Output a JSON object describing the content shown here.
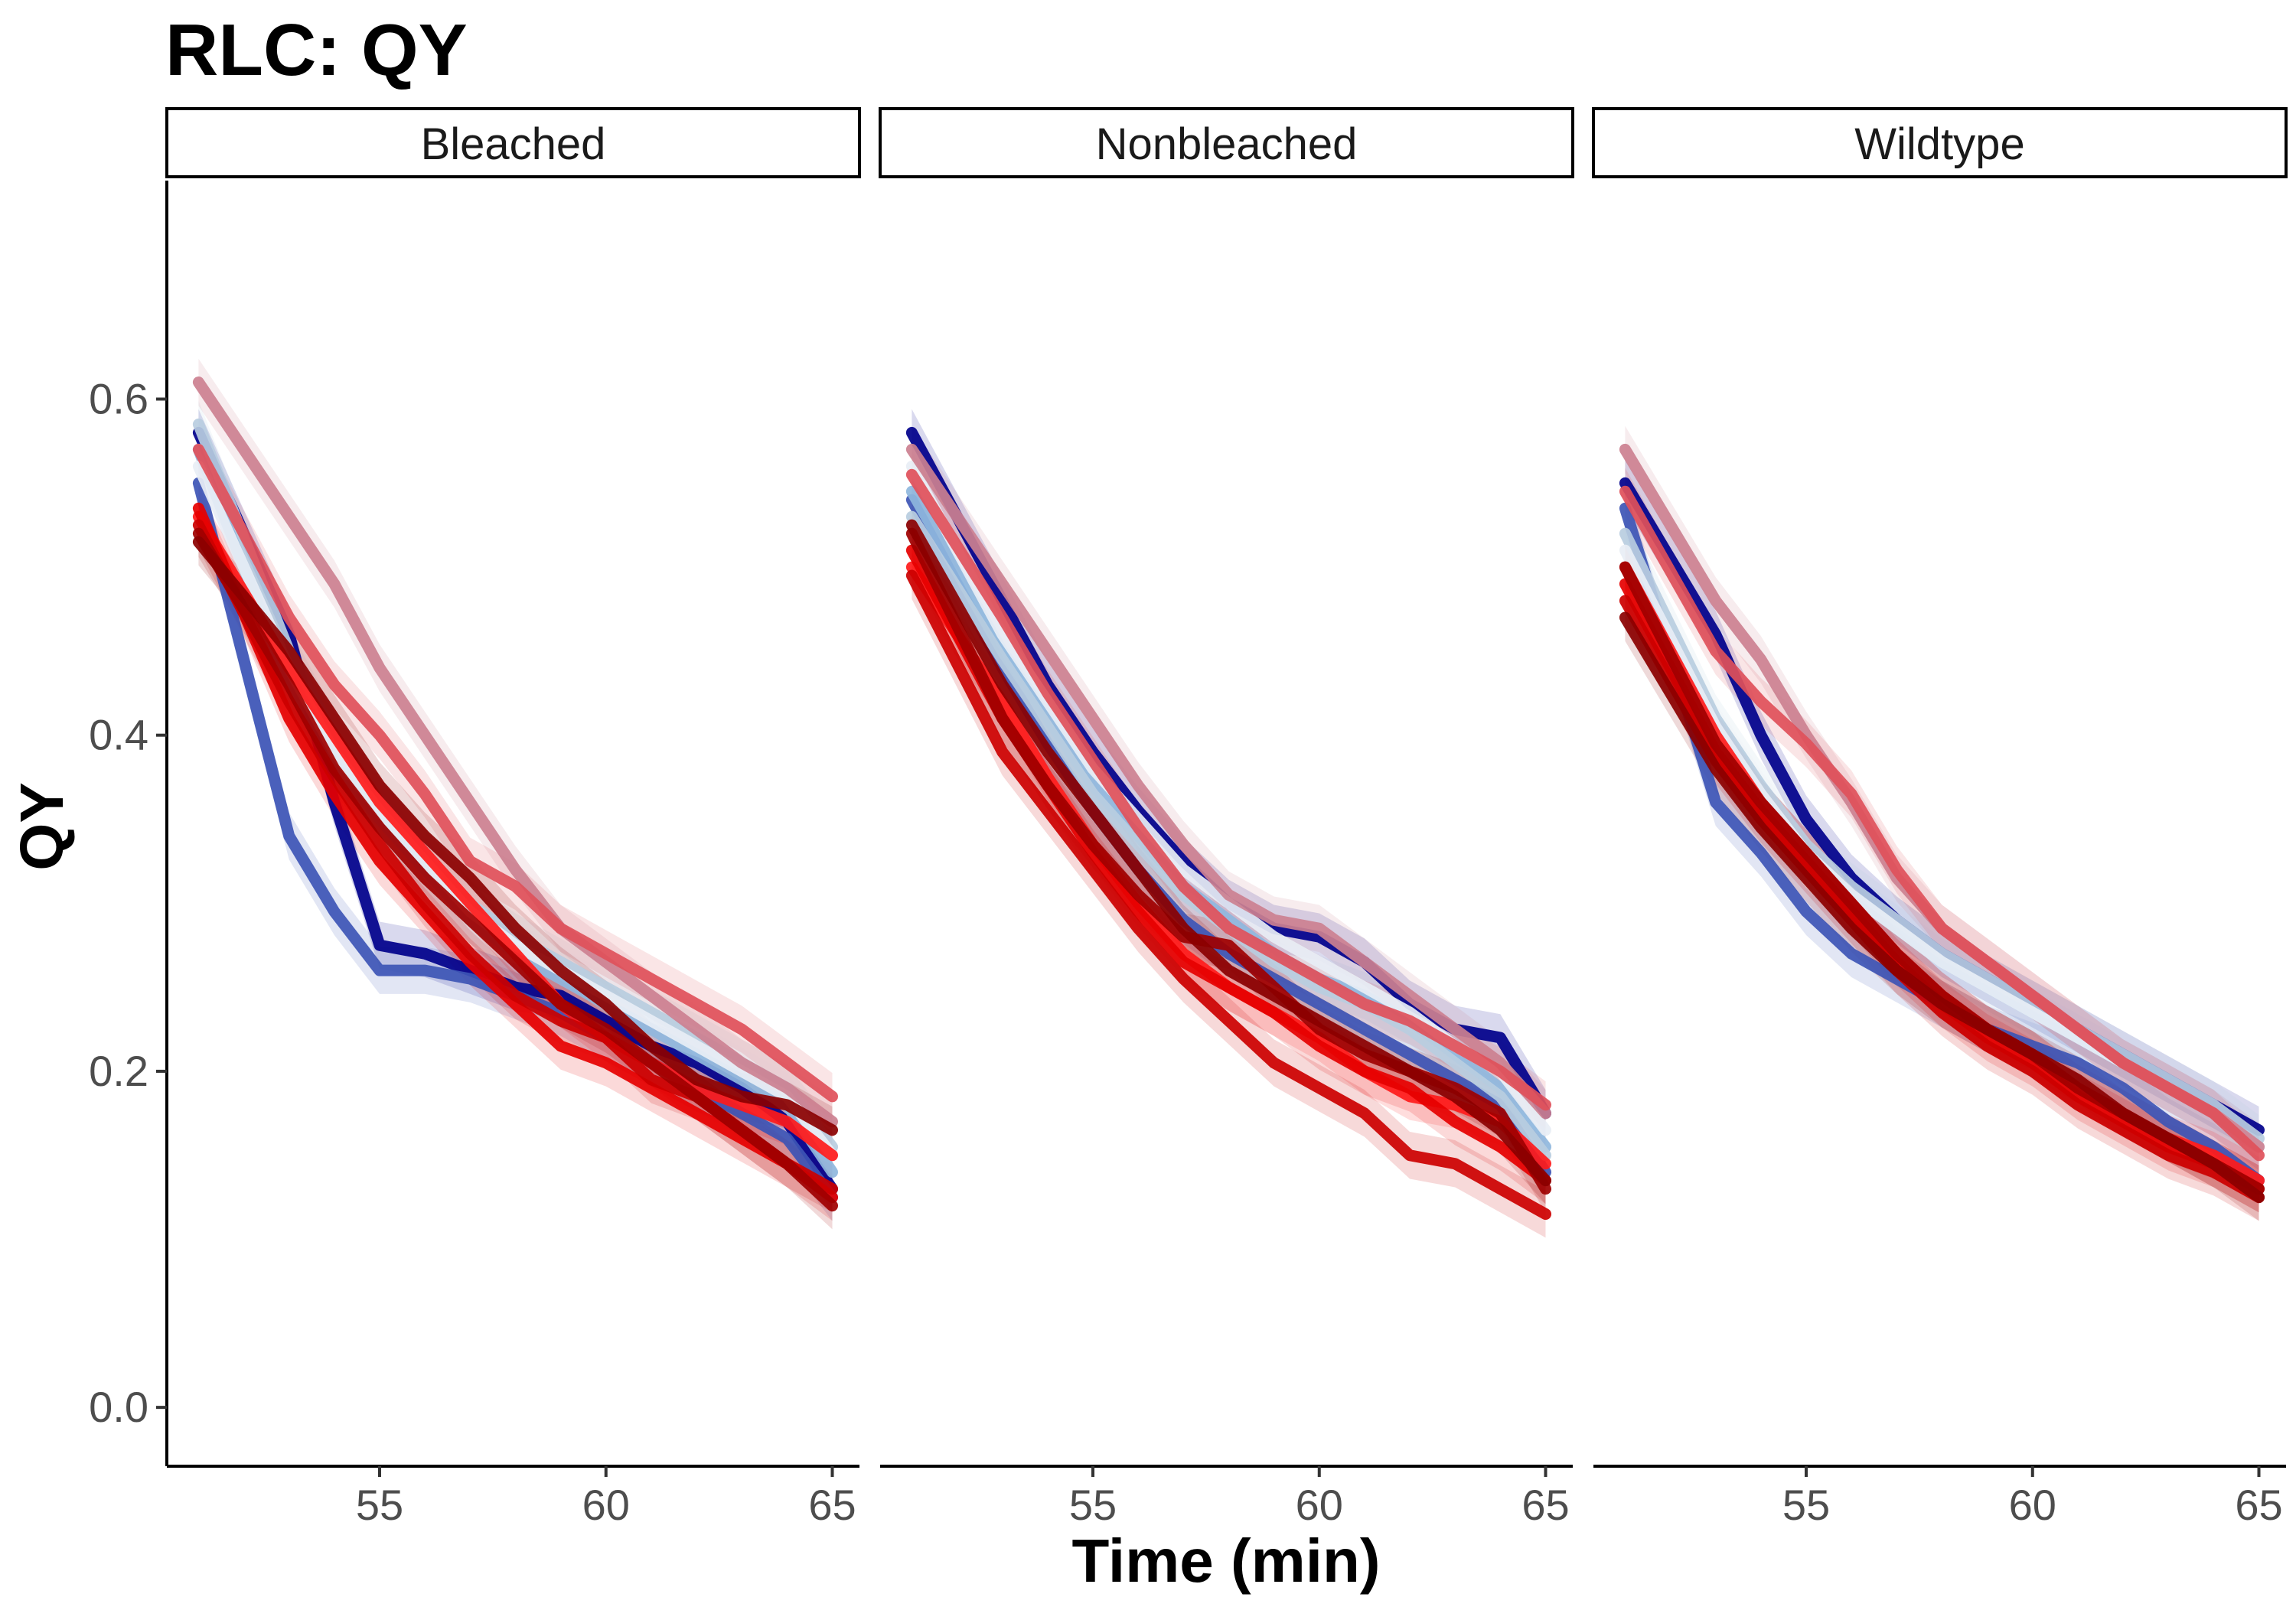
{
  "chart_data": {
    "type": "line",
    "title": "RLC: QY",
    "xlabel": "Time (min)",
    "ylabel": "QY",
    "xlim": [
      50.3,
      65.6
    ],
    "ylim": [
      -0.035,
      0.73
    ],
    "x_ticks": [
      "55",
      "60",
      "65"
    ],
    "x_tick_values": [
      55,
      60,
      65
    ],
    "y_ticks": [
      "0.0",
      "0.2",
      "0.4",
      "0.6"
    ],
    "y_tick_values": [
      0.0,
      0.2,
      0.4,
      0.6
    ],
    "grid": false,
    "legend": "none",
    "x": [
      51,
      53,
      54,
      55,
      56,
      57,
      58,
      59,
      60,
      61,
      62,
      63,
      64,
      65
    ],
    "panels": [
      {
        "label": "Bleached",
        "series": [
          {
            "color": "#00008b",
            "values": [
              0.58,
              0.46,
              0.36,
              0.275,
              0.27,
              0.26,
              0.25,
              0.245,
              0.23,
              0.215,
              0.205,
              0.19,
              0.17,
              0.13
            ]
          },
          {
            "color": "#3d55b5",
            "values": [
              0.55,
              0.34,
              0.295,
              0.26,
              0.26,
              0.255,
              0.245,
              0.235,
              0.22,
              0.205,
              0.19,
              0.175,
              0.16,
              0.125
            ]
          },
          {
            "color": "#8fb7dd",
            "values": [
              0.57,
              0.43,
              0.385,
              0.35,
              0.32,
              0.29,
              0.27,
              0.255,
              0.24,
              0.225,
              0.21,
              0.195,
              0.18,
              0.14
            ]
          },
          {
            "color": "#b8cde0",
            "values": [
              0.585,
              0.45,
              0.4,
              0.36,
              0.33,
              0.3,
              0.28,
              0.265,
              0.25,
              0.235,
              0.22,
              0.205,
              0.19,
              0.155
            ]
          },
          {
            "color": "#e8eef5",
            "values": [
              0.56,
              0.44,
              0.39,
              0.355,
              0.325,
              0.295,
              0.275,
              0.26,
              0.245,
              0.23,
              0.215,
              0.2,
              0.185,
              0.15
            ]
          },
          {
            "color": "#cc8090",
            "values": [
              0.61,
              0.53,
              0.49,
              0.44,
              0.4,
              0.36,
              0.32,
              0.285,
              0.265,
              0.245,
              0.225,
              0.205,
              0.19,
              0.17
            ]
          },
          {
            "color": "#e0505a",
            "values": [
              0.57,
              0.47,
              0.43,
              0.4,
              0.365,
              0.325,
              0.31,
              0.285,
              0.27,
              0.255,
              0.24,
              0.225,
              0.205,
              0.185
            ]
          },
          {
            "color": "#ff1a1a",
            "values": [
              0.53,
              0.44,
              0.4,
              0.36,
              0.33,
              0.3,
              0.27,
              0.24,
              0.22,
              0.205,
              0.19,
              0.18,
              0.17,
              0.15
            ]
          },
          {
            "color": "#e60000",
            "values": [
              0.535,
              0.41,
              0.365,
              0.325,
              0.295,
              0.265,
              0.24,
              0.215,
              0.205,
              0.19,
              0.175,
              0.16,
              0.145,
              0.125
            ]
          },
          {
            "color": "#cc0000",
            "values": [
              0.525,
              0.42,
              0.375,
              0.335,
              0.3,
              0.27,
              0.245,
              0.23,
              0.22,
              0.195,
              0.185,
              0.165,
              0.145,
              0.13
            ]
          },
          {
            "color": "#a00000",
            "values": [
              0.52,
              0.43,
              0.38,
              0.345,
              0.315,
              0.29,
              0.265,
              0.24,
              0.225,
              0.205,
              0.185,
              0.165,
              0.145,
              0.12
            ]
          },
          {
            "color": "#8b0000",
            "values": [
              0.515,
              0.45,
              0.41,
              0.37,
              0.34,
              0.315,
              0.285,
              0.26,
              0.24,
              0.215,
              0.195,
              0.185,
              0.18,
              0.165
            ]
          }
        ]
      },
      {
        "label": "Nonbleached",
        "series": [
          {
            "color": "#00008b",
            "values": [
              0.58,
              0.48,
              0.43,
              0.39,
              0.355,
              0.325,
              0.3,
              0.285,
              0.28,
              0.265,
              0.24,
              0.225,
              0.22,
              0.175
            ]
          },
          {
            "color": "#3d55b5",
            "values": [
              0.54,
              0.44,
              0.395,
              0.355,
              0.32,
              0.29,
              0.27,
              0.255,
              0.24,
              0.225,
              0.21,
              0.195,
              0.18,
              0.14
            ]
          },
          {
            "color": "#8fb7dd",
            "values": [
              0.545,
              0.45,
              0.41,
              0.37,
              0.34,
              0.31,
              0.29,
              0.27,
              0.255,
              0.245,
              0.23,
              0.21,
              0.19,
              0.155
            ]
          },
          {
            "color": "#b8cde0",
            "values": [
              0.53,
              0.445,
              0.405,
              0.365,
              0.335,
              0.305,
              0.285,
              0.265,
              0.25,
              0.24,
              0.225,
              0.205,
              0.185,
              0.15
            ]
          },
          {
            "color": "#e8eef5",
            "values": [
              0.56,
              0.46,
              0.42,
              0.38,
              0.35,
              0.32,
              0.3,
              0.28,
              0.265,
              0.25,
              0.235,
              0.215,
              0.2,
              0.165
            ]
          },
          {
            "color": "#cc8090",
            "values": [
              0.57,
              0.49,
              0.45,
              0.41,
              0.37,
              0.335,
              0.305,
              0.29,
              0.285,
              0.265,
              0.245,
              0.225,
              0.205,
              0.175
            ]
          },
          {
            "color": "#e0505a",
            "values": [
              0.555,
              0.47,
              0.425,
              0.385,
              0.345,
              0.31,
              0.285,
              0.27,
              0.255,
              0.24,
              0.23,
              0.215,
              0.2,
              0.18
            ]
          },
          {
            "color": "#ff1a1a",
            "values": [
              0.5,
              0.42,
              0.375,
              0.335,
              0.3,
              0.27,
              0.25,
              0.235,
              0.22,
              0.2,
              0.185,
              0.18,
              0.17,
              0.145
            ]
          },
          {
            "color": "#e60000",
            "values": [
              0.51,
              0.41,
              0.37,
              0.33,
              0.295,
              0.265,
              0.25,
              0.235,
              0.215,
              0.2,
              0.19,
              0.17,
              0.155,
              0.135
            ]
          },
          {
            "color": "#cc0000",
            "values": [
              0.495,
              0.39,
              0.355,
              0.32,
              0.285,
              0.255,
              0.23,
              0.205,
              0.19,
              0.175,
              0.15,
              0.145,
              0.13,
              0.115
            ]
          },
          {
            "color": "#a00000",
            "values": [
              0.52,
              0.41,
              0.37,
              0.335,
              0.305,
              0.28,
              0.275,
              0.25,
              0.225,
              0.21,
              0.2,
              0.19,
              0.175,
              0.13
            ]
          },
          {
            "color": "#8b0000",
            "values": [
              0.525,
              0.43,
              0.39,
              0.355,
              0.32,
              0.285,
              0.26,
              0.245,
              0.23,
              0.215,
              0.2,
              0.185,
              0.165,
              0.135
            ]
          }
        ]
      },
      {
        "label": "Wildtype",
        "series": [
          {
            "color": "#00008b",
            "values": [
              0.55,
              0.46,
              0.4,
              0.35,
              0.315,
              0.29,
              0.27,
              0.255,
              0.24,
              0.225,
              0.21,
              0.195,
              0.18,
              0.165
            ]
          },
          {
            "color": "#3d55b5",
            "values": [
              0.535,
              0.36,
              0.33,
              0.295,
              0.27,
              0.255,
              0.24,
              0.225,
              0.215,
              0.205,
              0.19,
              0.17,
              0.155,
              0.135
            ]
          },
          {
            "color": "#8fb7dd",
            "values": [
              0.5,
              0.4,
              0.36,
              0.33,
              0.305,
              0.285,
              0.265,
              0.25,
              0.235,
              0.22,
              0.205,
              0.19,
              0.175,
              0.155
            ]
          },
          {
            "color": "#b8cde0",
            "values": [
              0.52,
              0.41,
              0.37,
              0.335,
              0.31,
              0.29,
              0.27,
              0.255,
              0.24,
              0.225,
              0.21,
              0.195,
              0.18,
              0.16
            ]
          },
          {
            "color": "#e8eef5",
            "values": [
              0.51,
              0.405,
              0.365,
              0.33,
              0.305,
              0.285,
              0.265,
              0.25,
              0.235,
              0.22,
              0.205,
              0.19,
              0.175,
              0.155
            ]
          },
          {
            "color": "#cc8090",
            "values": [
              0.57,
              0.48,
              0.445,
              0.4,
              0.36,
              0.315,
              0.285,
              0.265,
              0.245,
              0.225,
              0.205,
              0.19,
              0.175,
              0.155
            ]
          },
          {
            "color": "#e0505a",
            "values": [
              0.545,
              0.45,
              0.42,
              0.395,
              0.365,
              0.32,
              0.285,
              0.265,
              0.245,
              0.225,
              0.205,
              0.19,
              0.175,
              0.15
            ]
          },
          {
            "color": "#ff1a1a",
            "values": [
              0.5,
              0.4,
              0.36,
              0.33,
              0.3,
              0.27,
              0.245,
              0.225,
              0.21,
              0.19,
              0.175,
              0.16,
              0.15,
              0.135
            ]
          },
          {
            "color": "#e60000",
            "values": [
              0.49,
              0.39,
              0.355,
              0.325,
              0.295,
              0.265,
              0.24,
              0.22,
              0.205,
              0.185,
              0.17,
              0.155,
              0.145,
              0.13
            ]
          },
          {
            "color": "#cc0000",
            "values": [
              0.48,
              0.385,
              0.35,
              0.32,
              0.29,
              0.26,
              0.235,
              0.215,
              0.2,
              0.18,
              0.165,
              0.15,
              0.14,
              0.125
            ]
          },
          {
            "color": "#a00000",
            "values": [
              0.5,
              0.395,
              0.36,
              0.33,
              0.3,
              0.27,
              0.245,
              0.225,
              0.21,
              0.19,
              0.175,
              0.16,
              0.145,
              0.13
            ]
          },
          {
            "color": "#8b0000",
            "values": [
              0.47,
              0.38,
              0.345,
              0.315,
              0.285,
              0.26,
              0.24,
              0.225,
              0.21,
              0.195,
              0.175,
              0.16,
              0.145,
              0.125
            ]
          }
        ]
      }
    ]
  }
}
